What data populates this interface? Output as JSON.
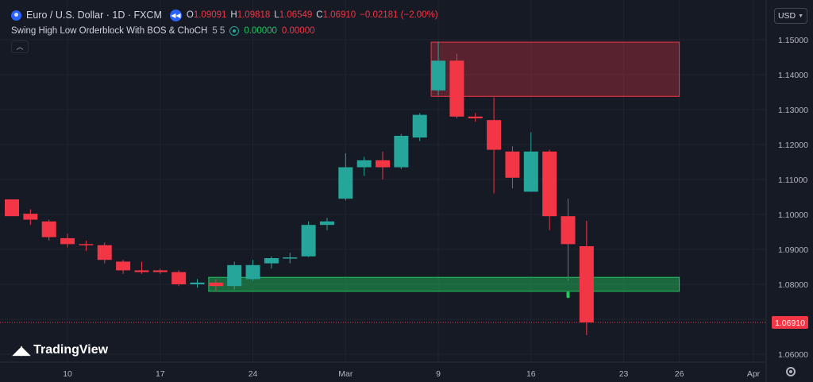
{
  "header": {
    "symbol": "Euro / U.S. Dollar · 1D · FXCM",
    "open_label": "O",
    "open": "1.09091",
    "high_label": "H",
    "high": "1.09818",
    "low_label": "L",
    "low": "1.06549",
    "close_label": "C",
    "close": "1.06910",
    "change": "−0.02181 (−2.00%)"
  },
  "indicator": {
    "name": "Swing High Low Orderblock With BOS & ChoCH",
    "params": "5 5",
    "value1": "0.00000",
    "value2": "0.00000"
  },
  "currency_button": {
    "label": "USD"
  },
  "branding": {
    "logo_text": "TradingView"
  },
  "colors": {
    "background": "#161a25",
    "bull": "#26a69a",
    "bear": "#f23645",
    "supply_zone": "#f23645",
    "demand_zone": "#22c55e",
    "grid": "#1f2430"
  },
  "icons": {
    "symbol": "currency-flag-icon",
    "replay": "replay-icon",
    "visibility": "eye-icon",
    "collapse": "chevron-up-icon",
    "currency_dropdown": "chevron-down-icon",
    "settings": "gear-icon"
  },
  "chart_data": {
    "type": "candlestick",
    "price_axis": [
      "1.15000",
      "1.14000",
      "1.13000",
      "1.12000",
      "1.11000",
      "1.10000",
      "1.09000",
      "1.08000",
      "1.07000",
      "1.06000"
    ],
    "time_axis": [
      {
        "label": "10",
        "index": 3
      },
      {
        "label": "17",
        "index": 8
      },
      {
        "label": "24",
        "index": 13
      },
      {
        "label": "Mar",
        "index": 18
      },
      {
        "label": "9",
        "index": 23
      },
      {
        "label": "16",
        "index": 28
      },
      {
        "label": "23",
        "index": 33
      },
      {
        "label": "26",
        "index": 36
      },
      {
        "label": "Apr",
        "index": 40
      }
    ],
    "last_price": "1.06910",
    "candles": [
      {
        "o": 1.1043,
        "h": 1.1043,
        "l": 1.0995,
        "c": 1.0995
      },
      {
        "o": 1.1002,
        "h": 1.1015,
        "l": 1.097,
        "c": 1.0985
      },
      {
        "o": 1.098,
        "h": 1.0985,
        "l": 1.0925,
        "c": 1.0935
      },
      {
        "o": 1.0932,
        "h": 1.0945,
        "l": 1.0905,
        "c": 1.0915
      },
      {
        "o": 1.0915,
        "h": 1.0925,
        "l": 1.0895,
        "c": 1.0912
      },
      {
        "o": 1.0912,
        "h": 1.092,
        "l": 1.086,
        "c": 1.087
      },
      {
        "o": 1.0865,
        "h": 1.087,
        "l": 1.083,
        "c": 1.084
      },
      {
        "o": 1.084,
        "h": 1.0865,
        "l": 1.083,
        "c": 1.0835
      },
      {
        "o": 1.084,
        "h": 1.0845,
        "l": 1.083,
        "c": 1.0835
      },
      {
        "o": 1.0835,
        "h": 1.084,
        "l": 1.0795,
        "c": 1.08
      },
      {
        "o": 1.08,
        "h": 1.0815,
        "l": 1.079,
        "c": 1.0805
      },
      {
        "o": 1.0805,
        "h": 1.0815,
        "l": 1.078,
        "c": 1.0795
      },
      {
        "o": 1.0795,
        "h": 1.0865,
        "l": 1.0785,
        "c": 1.0855
      },
      {
        "o": 1.0815,
        "h": 1.087,
        "l": 1.081,
        "c": 1.0855
      },
      {
        "o": 1.086,
        "h": 1.088,
        "l": 1.0845,
        "c": 1.0875
      },
      {
        "o": 1.0877,
        "h": 1.089,
        "l": 1.086,
        "c": 1.0877
      },
      {
        "o": 1.088,
        "h": 1.098,
        "l": 1.0878,
        "c": 1.097
      },
      {
        "o": 1.097,
        "h": 1.099,
        "l": 1.0955,
        "c": 1.098
      },
      {
        "o": 1.1045,
        "h": 1.1175,
        "l": 1.104,
        "c": 1.1135
      },
      {
        "o": 1.1135,
        "h": 1.1165,
        "l": 1.111,
        "c": 1.1155
      },
      {
        "o": 1.1155,
        "h": 1.118,
        "l": 1.11,
        "c": 1.1135
      },
      {
        "o": 1.1135,
        "h": 1.123,
        "l": 1.113,
        "c": 1.1225
      },
      {
        "o": 1.122,
        "h": 1.129,
        "l": 1.121,
        "c": 1.1285
      },
      {
        "o": 1.1355,
        "h": 1.1495,
        "l": 1.134,
        "c": 1.144
      },
      {
        "o": 1.144,
        "h": 1.146,
        "l": 1.1275,
        "c": 1.128
      },
      {
        "o": 1.128,
        "h": 1.129,
        "l": 1.1265,
        "c": 1.1275
      },
      {
        "o": 1.127,
        "h": 1.1335,
        "l": 1.106,
        "c": 1.1185
      },
      {
        "o": 1.118,
        "h": 1.1195,
        "l": 1.1075,
        "c": 1.1105
      },
      {
        "o": 1.1065,
        "h": 1.1235,
        "l": 1.1065,
        "c": 1.118
      },
      {
        "o": 1.118,
        "h": 1.1185,
        "l": 1.0955,
        "c": 1.0995
      },
      {
        "o": 1.0995,
        "h": 1.1045,
        "l": 1.081,
        "c": 1.0915
      },
      {
        "o": 1.09091,
        "h": 1.09818,
        "l": 1.06549,
        "c": 1.0691
      }
    ],
    "zones": [
      {
        "name": "supply",
        "start_index": 23,
        "end_index": 36,
        "top": 1.1493,
        "bottom": 1.1338
      },
      {
        "name": "demand",
        "start_index": 11,
        "end_index": 36,
        "top": 1.082,
        "bottom": 1.078
      }
    ],
    "markers": [
      {
        "index": 30,
        "price": 1.077
      }
    ]
  }
}
